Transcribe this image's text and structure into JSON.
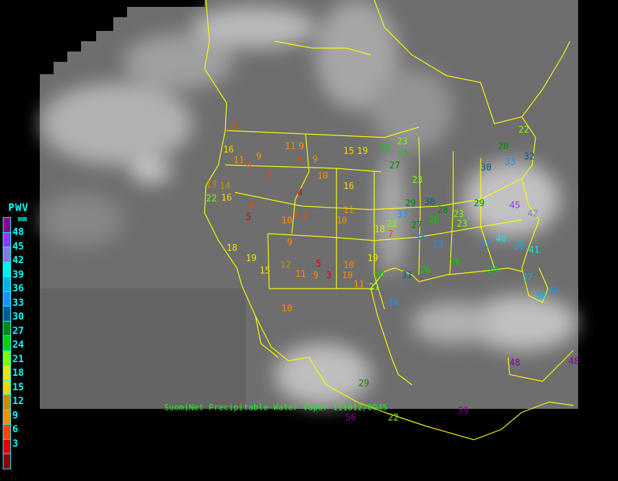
{
  "caption": "SuomiNet Precipitable Water Vapor 111012/0945",
  "legend": {
    "title": "PWV",
    "unit": "mm",
    "ticks": [
      "48",
      "45",
      "42",
      "39",
      "36",
      "33",
      "30",
      "27",
      "24",
      "21",
      "18",
      "15",
      "12",
      "9",
      "6",
      "3"
    ],
    "colors": [
      "#8b0096",
      "#9933ff",
      "#8877dd",
      "#00f0f0",
      "#00b4e8",
      "#1e90ff",
      "#005a96",
      "#008c00",
      "#00d200",
      "#7cfc00",
      "#e6e600",
      "#ffd200",
      "#cd8c00",
      "#ff8c00",
      "#ff4500",
      "#dc0000",
      "#8b0000"
    ]
  },
  "colors": {
    "background": "#000000",
    "boundaries": "#ffff00",
    "caption": "#22ee22",
    "legend_text": "#00ffff"
  },
  "stations": [
    "16",
    "11",
    "9",
    "11",
    "9",
    "8",
    "9",
    "10",
    "15",
    "19",
    "25",
    "23",
    "25",
    "27",
    "23",
    "30",
    "33",
    "32",
    "28",
    "22",
    "13",
    "14",
    "22",
    "16",
    "6",
    "5",
    "10",
    "8",
    "4",
    "11",
    "10",
    "18",
    "22",
    "33",
    "30",
    "28",
    "23",
    "29",
    "45",
    "42",
    "40",
    "38",
    "9",
    "5",
    "3",
    "9",
    "10",
    "11",
    "19",
    "24",
    "21",
    "31",
    "34",
    "26",
    "26",
    "24",
    "37",
    "38",
    "34",
    "18",
    "19",
    "15",
    "12",
    "11",
    "10",
    "29",
    "56",
    "22",
    "59",
    "48",
    "48",
    "6",
    "8",
    "7",
    "7",
    "16",
    "10",
    "7",
    "26",
    "27",
    "33",
    "23",
    "29",
    "35",
    "35",
    "41"
  ]
}
